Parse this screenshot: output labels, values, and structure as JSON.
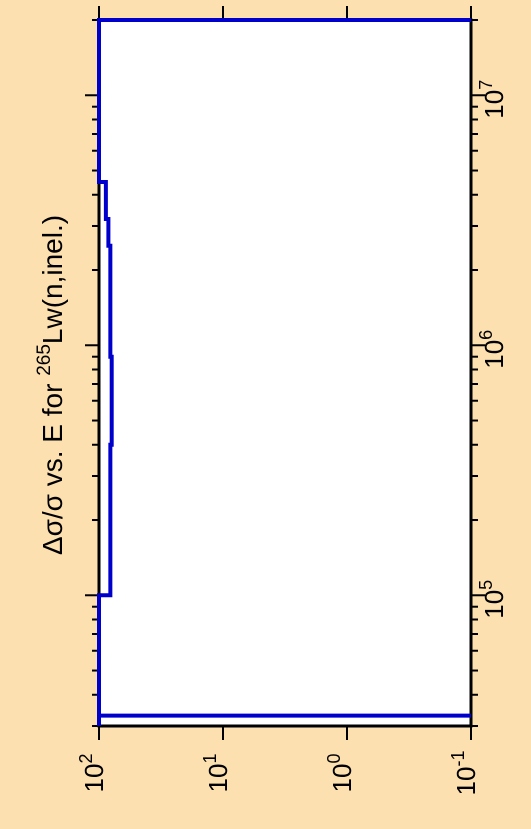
{
  "chart_data": {
    "type": "line",
    "title": "",
    "ylabel_parts": {
      "prefix": "Δσ/σ vs. E for ",
      "superscript": "265",
      "suffix": "Lw(n,inel.)"
    },
    "xaxis": {
      "label": "E",
      "scale": "log",
      "range": [
        30000,
        20000000
      ],
      "ticks": [
        {
          "value": 100000,
          "base": "10",
          "exp": "5"
        },
        {
          "value": 1000000,
          "base": "10",
          "exp": "6"
        },
        {
          "value": 10000000,
          "base": "10",
          "exp": "7"
        }
      ]
    },
    "yaxis": {
      "label": "Δσ/σ",
      "scale": "log",
      "range": [
        0.1,
        100
      ],
      "ticks": [
        {
          "value": 100,
          "base": "10",
          "exp": "2"
        },
        {
          "value": 10,
          "base": "10",
          "exp": "1"
        },
        {
          "value": 1,
          "base": "10",
          "exp": "0"
        },
        {
          "value": 0.1,
          "base": "10",
          "exp": "-1"
        }
      ]
    },
    "grid": false,
    "series": [
      {
        "color": "#0000cc",
        "points": [
          [
            30000,
            100
          ],
          [
            33000,
            100
          ],
          [
            33000,
            0.1
          ],
          [
            33000,
            100
          ],
          [
            100000,
            100
          ],
          [
            100000,
            81
          ],
          [
            400000,
            81
          ],
          [
            400000,
            79
          ],
          [
            900000,
            79
          ],
          [
            900000,
            81
          ],
          [
            2500000,
            81
          ],
          [
            2500000,
            84
          ],
          [
            3200000,
            84
          ],
          [
            3200000,
            88
          ],
          [
            4500000,
            88
          ],
          [
            4500000,
            100
          ],
          [
            20000000,
            100
          ],
          [
            20000000,
            0.1
          ],
          [
            20000000,
            100
          ]
        ]
      }
    ]
  }
}
